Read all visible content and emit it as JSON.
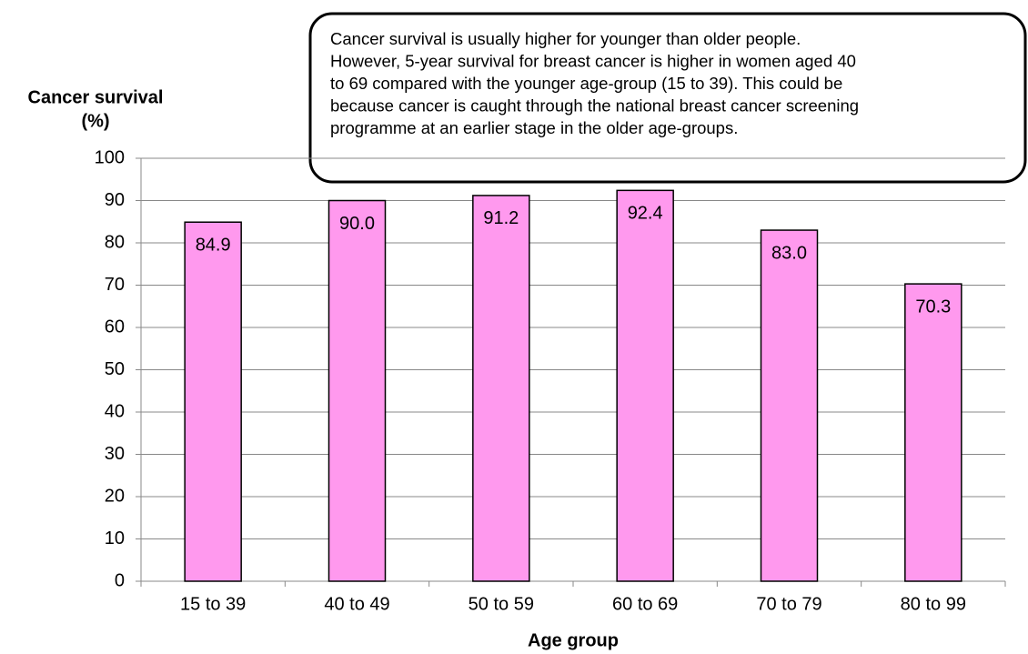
{
  "chart_data": {
    "type": "bar",
    "categories": [
      "15 to 39",
      "40 to 49",
      "50 to 59",
      "60 to 69",
      "70 to 79",
      "80 to 99"
    ],
    "values": [
      84.9,
      90,
      91.2,
      92.4,
      83,
      70.3
    ],
    "value_labels": [
      "84.9",
      "90.0",
      "91.2",
      "92.4",
      "83.0",
      "70.3"
    ],
    "color": "#ff99ee",
    "ylim": [
      0,
      100
    ],
    "yticks": [
      0,
      10,
      20,
      30,
      40,
      50,
      60,
      70,
      80,
      90,
      100
    ],
    "grid": true,
    "ylabel": [
      "Cancer survival",
      "(%)"
    ],
    "xlabel": "Age group",
    "annotation": [
      "Cancer survival is usually higher for younger than older people.",
      "However, 5-year survival for breast cancer is higher in women aged 40",
      "to 69 compared with the younger age-group (15 to 39). This could be",
      "because cancer is caught through the national breast cancer screening",
      "programme at an earlier stage in the older age-groups."
    ]
  }
}
